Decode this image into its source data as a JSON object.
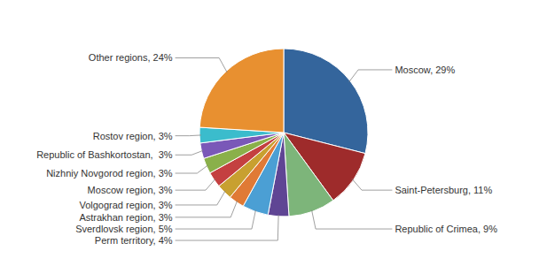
{
  "chart_data": {
    "type": "pie",
    "categories": [
      "Moscow, 29%",
      "Saint-Petersburg, 11%",
      "Republic of Crimea, 9%",
      "Perm territory, 4%",
      "Sverdlovsk region, 5%",
      "Astrakhan region, 3%",
      "Volgograd region, 3%",
      "Moscow region, 3%",
      "Nizhniy Novgorod region, 3%",
      "Republic of Bashkortostan,  3%",
      "Rostov region, 3%",
      "Other regions, 24%"
    ],
    "values": [
      29,
      11,
      9,
      4,
      5,
      3,
      3,
      3,
      3,
      3,
      3,
      24
    ],
    "colors": [
      "#34659c",
      "#9e2b2b",
      "#7db57a",
      "#5f4594",
      "#4b9fd4",
      "#e07a35",
      "#c8a030",
      "#c44040",
      "#8ab04a",
      "#7a58b8",
      "#3bbccc",
      "#e89030"
    ]
  }
}
